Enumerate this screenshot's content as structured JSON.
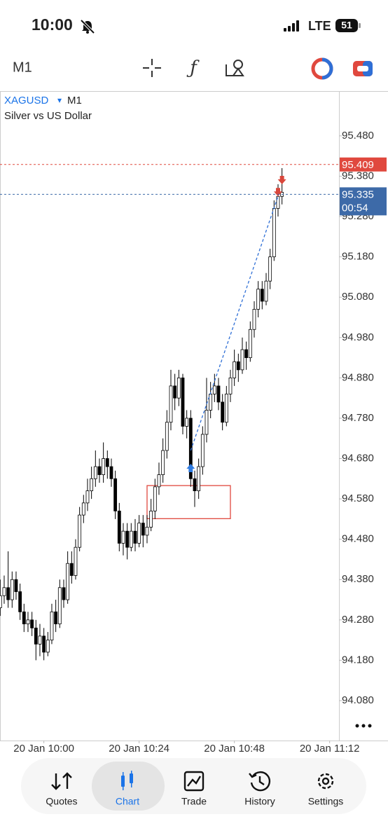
{
  "status_bar": {
    "time": "10:00",
    "network": "LTE",
    "battery": "51"
  },
  "toolbar": {
    "timeframe": "M1"
  },
  "bottom_nav": [
    "Quotes",
    "Chart",
    "Trade",
    "History",
    "Settings"
  ],
  "chart_data": {
    "type": "candlestick",
    "symbol": "XAGUSD",
    "symbol_arrow": "▾",
    "timeframe": "M1",
    "title": "Silver vs US Dollar",
    "categories": [
      null,
      null,
      null,
      null,
      null,
      null,
      null,
      null,
      null,
      null,
      null,
      "20 Jan 10:00",
      null,
      null,
      null,
      null,
      null,
      null,
      null,
      null,
      null,
      null,
      null,
      null,
      null,
      null,
      null,
      null,
      null,
      null,
      null,
      null,
      null,
      null,
      null,
      "20 Jan 10:24",
      null,
      null,
      null,
      null,
      null,
      null,
      null,
      null,
      null,
      null,
      null,
      null,
      null,
      null,
      null,
      null,
      null,
      null,
      null,
      null,
      null,
      null,
      null,
      "20 Jan 10:48",
      null,
      null,
      null,
      null,
      null,
      null,
      null,
      null,
      null,
      null,
      null,
      null,
      null,
      null,
      null,
      null,
      null,
      null,
      null,
      null,
      null,
      null,
      null,
      "20 Jan 11:12",
      null,
      null
    ],
    "open": [
      94.31,
      94.34,
      94.36,
      94.33,
      94.38,
      94.35,
      94.3,
      94.27,
      94.28,
      94.26,
      94.22,
      94.24,
      94.2,
      94.23,
      94.3,
      94.27,
      94.36,
      94.33,
      94.42,
      94.39,
      94.46,
      94.54,
      94.57,
      94.6,
      94.63,
      94.66,
      94.64,
      94.68,
      94.66,
      94.63,
      94.55,
      94.47,
      94.5,
      94.46,
      94.5,
      94.47,
      94.52,
      94.49,
      94.51,
      94.55,
      94.61,
      94.64,
      94.7,
      94.77,
      94.86,
      94.83,
      94.88,
      94.76,
      94.78,
      94.63,
      94.6,
      94.66,
      94.74,
      94.8,
      94.84,
      94.86,
      94.82,
      94.77,
      94.84,
      94.88,
      94.92,
      94.9,
      94.95,
      94.93,
      95.0,
      95.05,
      95.1,
      95.07,
      95.12,
      95.18,
      95.3,
      95.33,
      null,
      null,
      null,
      null,
      null,
      null,
      null,
      null,
      null,
      null,
      null,
      null,
      null,
      null
    ],
    "high": [
      94.38,
      94.39,
      94.45,
      94.4,
      94.4,
      94.37,
      94.32,
      94.3,
      94.3,
      94.28,
      94.27,
      94.26,
      94.25,
      94.32,
      94.33,
      94.38,
      94.38,
      94.45,
      94.45,
      94.48,
      94.56,
      94.59,
      94.63,
      94.66,
      94.7,
      94.68,
      94.72,
      94.7,
      94.68,
      94.65,
      94.57,
      94.52,
      94.52,
      94.52,
      94.53,
      94.54,
      94.54,
      94.54,
      94.58,
      94.63,
      94.67,
      94.73,
      94.8,
      94.9,
      94.89,
      94.9,
      94.89,
      94.8,
      94.8,
      94.65,
      94.68,
      94.76,
      94.88,
      94.87,
      94.89,
      94.88,
      94.84,
      94.86,
      94.9,
      94.95,
      94.94,
      94.98,
      94.97,
      95.02,
      95.07,
      95.12,
      95.12,
      95.14,
      95.2,
      95.32,
      95.36,
      95.4,
      null,
      null,
      null,
      null,
      null,
      null,
      null,
      null,
      null,
      null,
      null,
      null,
      null,
      null
    ],
    "low": [
      94.29,
      94.32,
      94.31,
      94.31,
      94.33,
      94.28,
      94.25,
      94.25,
      94.24,
      94.18,
      94.19,
      94.18,
      94.19,
      94.22,
      94.25,
      94.26,
      94.31,
      94.32,
      94.37,
      94.38,
      94.45,
      94.52,
      94.55,
      94.58,
      94.61,
      94.62,
      94.62,
      94.63,
      94.61,
      94.53,
      94.45,
      94.44,
      94.43,
      94.45,
      94.45,
      94.46,
      94.46,
      94.47,
      94.5,
      94.53,
      94.59,
      94.62,
      94.68,
      94.75,
      94.8,
      94.81,
      94.74,
      94.73,
      94.61,
      94.56,
      94.58,
      94.64,
      94.72,
      94.78,
      94.82,
      94.8,
      94.75,
      94.76,
      94.82,
      94.86,
      94.87,
      94.89,
      94.9,
      94.92,
      94.98,
      95.03,
      95.05,
      95.06,
      95.1,
      95.17,
      95.28,
      95.31,
      null,
      null,
      null,
      null,
      null,
      null,
      null,
      null,
      null,
      null,
      null,
      null,
      null,
      null
    ],
    "close": [
      94.34,
      94.36,
      94.33,
      94.38,
      94.35,
      94.3,
      94.27,
      94.28,
      94.26,
      94.22,
      94.24,
      94.2,
      94.23,
      94.3,
      94.27,
      94.36,
      94.33,
      94.42,
      94.39,
      94.46,
      94.54,
      94.57,
      94.6,
      94.63,
      94.66,
      94.64,
      94.68,
      94.66,
      94.63,
      94.55,
      94.47,
      94.5,
      94.46,
      94.5,
      94.47,
      94.52,
      94.49,
      94.51,
      94.55,
      94.61,
      94.64,
      94.7,
      94.77,
      94.86,
      94.83,
      94.88,
      94.76,
      94.78,
      94.63,
      94.6,
      94.66,
      94.74,
      94.8,
      94.84,
      94.86,
      94.82,
      94.77,
      94.84,
      94.88,
      94.92,
      94.9,
      94.95,
      94.93,
      95.0,
      95.05,
      95.1,
      95.07,
      95.12,
      95.18,
      95.3,
      95.33,
      95.34,
      null,
      null,
      null,
      null,
      null,
      null,
      null,
      null,
      null,
      null,
      null,
      null,
      null,
      null
    ],
    "up_color": "#ffffff",
    "down_color": "#000000",
    "outline_color": "#000000",
    "ylim": [
      93.981,
      95.591
    ],
    "yticks": [
      {
        "value": 94.08,
        "label": "94.080"
      },
      {
        "value": 94.18,
        "label": "94.180"
      },
      {
        "value": 94.28,
        "label": "94.280"
      },
      {
        "value": 94.38,
        "label": "94.380"
      },
      {
        "value": 94.48,
        "label": "94.480"
      },
      {
        "value": 94.58,
        "label": "94.580"
      },
      {
        "value": 94.68,
        "label": "94.680"
      },
      {
        "value": 94.78,
        "label": "94.780"
      },
      {
        "value": 94.88,
        "label": "94.880"
      },
      {
        "value": 94.98,
        "label": "94.980"
      },
      {
        "value": 95.08,
        "label": "95.080"
      },
      {
        "value": 95.18,
        "label": "95.180"
      },
      {
        "value": 95.28,
        "label": "95.280"
      },
      {
        "value": 95.38,
        "label": "95.380"
      },
      {
        "value": 95.48,
        "label": "95.480"
      }
    ],
    "ask_line": {
      "value": 95.409,
      "label": "95.409",
      "color": "#e0483e"
    },
    "bid_line": {
      "value": 95.335,
      "label": "95.335",
      "timer": "00:54",
      "color": "#3d6aa8"
    },
    "trade": {
      "entry": {
        "x": 48,
        "price": 94.7
      },
      "exits": [
        {
          "x": 70,
          "price": 95.33
        },
        {
          "x": 71,
          "price": 95.36
        }
      ],
      "line_color": "#2f6fd6",
      "buy_color": "#2f7be0",
      "sell_color": "#d9473c"
    },
    "rectangle": {
      "x": [
        37,
        58
      ],
      "price": [
        94.613,
        94.531
      ],
      "color": "#e0483e"
    },
    "grid": false
  }
}
